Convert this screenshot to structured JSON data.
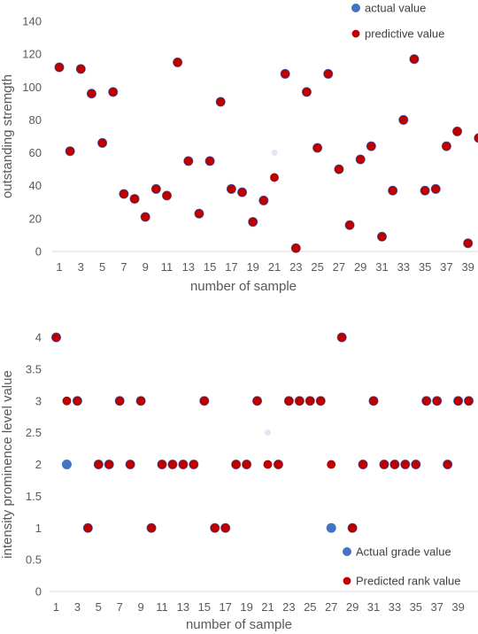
{
  "chart_data": [
    {
      "type": "scatter",
      "xlabel": "number of sample",
      "ylabel": "outstanding stremgth",
      "ylim": [
        0,
        140
      ],
      "yticks": [
        "0",
        "20",
        "40",
        "60",
        "80",
        "100",
        "120",
        "140"
      ],
      "xticks": [
        "1",
        "3",
        "5",
        "7",
        "9",
        "11",
        "13",
        "15",
        "17",
        "19",
        "21",
        "23",
        "25",
        "27",
        "29",
        "31",
        "33",
        "35",
        "37",
        "39"
      ],
      "legend_position": "top-right",
      "grid": false,
      "series": [
        {
          "name": "actual value",
          "color": "#4472c4",
          "x": [
            1,
            2,
            3,
            4,
            5,
            6,
            7,
            8,
            9,
            10,
            11,
            12,
            13,
            14,
            15,
            16,
            17,
            18,
            19,
            20,
            21,
            22,
            23,
            24,
            25,
            26,
            27,
            28,
            29,
            30,
            31,
            32,
            33,
            34,
            35,
            36,
            37,
            38,
            39,
            40
          ],
          "y": [
            112,
            61,
            111,
            96,
            66,
            97,
            35,
            32,
            21,
            38,
            34,
            115,
            55,
            23,
            55,
            91,
            38,
            36,
            18,
            31,
            60,
            108,
            2,
            97,
            63,
            108,
            50,
            16,
            56,
            64,
            9,
            37,
            80,
            117,
            37,
            38,
            64,
            73,
            5,
            69
          ]
        },
        {
          "name": "predictive value",
          "color": "#c00000",
          "x": [
            1,
            2,
            3,
            4,
            5,
            6,
            7,
            8,
            9,
            10,
            11,
            12,
            13,
            14,
            15,
            16,
            17,
            18,
            19,
            20,
            21,
            22,
            23,
            24,
            25,
            26,
            27,
            28,
            29,
            30,
            31,
            32,
            33,
            34,
            35,
            36,
            37,
            38,
            39,
            40
          ],
          "y": [
            112,
            61,
            111,
            96,
            66,
            97,
            35,
            32,
            21,
            38,
            34,
            115,
            55,
            23,
            55,
            91,
            38,
            36,
            18,
            31,
            45,
            108,
            2,
            97,
            63,
            108,
            50,
            16,
            56,
            64,
            9,
            37,
            80,
            117,
            37,
            38,
            64,
            73,
            5,
            69
          ]
        }
      ]
    },
    {
      "type": "scatter",
      "xlabel": "number of sample",
      "ylabel": "intensity prominence level value",
      "ylim": [
        0,
        4
      ],
      "yticks": [
        "0",
        "0.5",
        "1",
        "1.5",
        "2",
        "2.5",
        "3",
        "3.5",
        "4"
      ],
      "xticks": [
        "1",
        "3",
        "5",
        "7",
        "9",
        "11",
        "13",
        "15",
        "17",
        "19",
        "21",
        "23",
        "25",
        "27",
        "29",
        "31",
        "33",
        "35",
        "37",
        "39"
      ],
      "legend_position": "bottom-right",
      "grid": false,
      "series": [
        {
          "name": "Actual grade value",
          "color": "#4472c4",
          "x": [
            1,
            2,
            3,
            4,
            5,
            6,
            7,
            8,
            9,
            10,
            11,
            12,
            13,
            14,
            15,
            16,
            17,
            18,
            19,
            20,
            21,
            22,
            23,
            24,
            25,
            26,
            27,
            28,
            29,
            30,
            31,
            32,
            33,
            34,
            35,
            36,
            37,
            38,
            39,
            40
          ],
          "y": [
            4,
            2,
            3,
            1,
            2,
            2,
            3,
            2,
            3,
            1,
            2,
            2,
            2,
            2,
            3,
            1,
            1,
            2,
            2,
            3,
            2.5,
            2,
            3,
            3,
            3,
            3,
            1,
            4,
            1,
            2,
            3,
            2,
            2,
            2,
            2,
            3,
            3,
            2,
            3,
            3
          ]
        },
        {
          "name": "Predicted rank value",
          "color": "#c00000",
          "x": [
            1,
            2,
            3,
            4,
            5,
            6,
            7,
            8,
            9,
            10,
            11,
            12,
            13,
            14,
            15,
            16,
            17,
            18,
            19,
            20,
            21,
            22,
            23,
            24,
            25,
            26,
            27,
            28,
            29,
            30,
            31,
            32,
            33,
            34,
            35,
            36,
            37,
            38,
            39,
            40
          ],
          "y": [
            4,
            3,
            3,
            1,
            2,
            2,
            3,
            2,
            3,
            1,
            2,
            2,
            2,
            2,
            3,
            1,
            1,
            2,
            2,
            3,
            2,
            2,
            3,
            3,
            3,
            3,
            2,
            4,
            1,
            2,
            3,
            2,
            2,
            2,
            2,
            3,
            3,
            2,
            3,
            3
          ]
        }
      ]
    }
  ]
}
